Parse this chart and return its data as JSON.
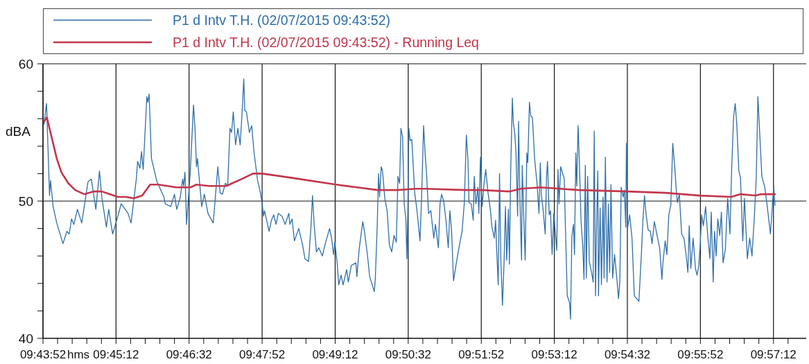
{
  "chart_data": {
    "type": "line",
    "ylabel": "dBA",
    "xlabel": "hms",
    "xlim": [
      9.7311111,
      9.9633
    ],
    "ylim": [
      40,
      60
    ],
    "xticks": [
      {
        "value": 9.7311111,
        "label": "09:43:52"
      },
      {
        "value": 9.7355556,
        "label": null
      },
      {
        "value": 9.74,
        "label": null
      },
      {
        "value": 9.7444444,
        "label": null
      },
      {
        "value": 9.7488889,
        "label": null
      },
      {
        "value": 9.7533333,
        "label": "09:45:12"
      },
      {
        "value": 9.7577778,
        "label": null
      },
      {
        "value": 9.7622222,
        "label": null
      },
      {
        "value": 9.7666667,
        "label": null
      },
      {
        "value": 9.7711111,
        "label": null
      },
      {
        "value": 9.7755556,
        "label": "09:46:32"
      },
      {
        "value": 9.78,
        "label": null
      },
      {
        "value": 9.7844444,
        "label": null
      },
      {
        "value": 9.7888889,
        "label": null
      },
      {
        "value": 9.7933333,
        "label": null
      },
      {
        "value": 9.7977778,
        "label": "09:47:52"
      },
      {
        "value": 9.8022222,
        "label": null
      },
      {
        "value": 9.8066667,
        "label": null
      },
      {
        "value": 9.8111111,
        "label": null
      },
      {
        "value": 9.8155556,
        "label": null
      },
      {
        "value": 9.82,
        "label": "09:49:12"
      },
      {
        "value": 9.8244444,
        "label": null
      },
      {
        "value": 9.8288889,
        "label": null
      },
      {
        "value": 9.8333333,
        "label": null
      },
      {
        "value": 9.8377778,
        "label": null
      },
      {
        "value": 9.8422222,
        "label": "09:50:32"
      },
      {
        "value": 9.8466667,
        "label": null
      },
      {
        "value": 9.8511111,
        "label": null
      },
      {
        "value": 9.8555556,
        "label": null
      },
      {
        "value": 9.86,
        "label": null
      },
      {
        "value": 9.8644444,
        "label": "09:51:52"
      },
      {
        "value": 9.8688889,
        "label": null
      },
      {
        "value": 9.8733333,
        "label": null
      },
      {
        "value": 9.8777778,
        "label": null
      },
      {
        "value": 9.8822222,
        "label": null
      },
      {
        "value": 9.8866667,
        "label": "09:53:12"
      },
      {
        "value": 9.8911111,
        "label": null
      },
      {
        "value": 9.8955556,
        "label": null
      },
      {
        "value": 9.9,
        "label": null
      },
      {
        "value": 9.9044444,
        "label": null
      },
      {
        "value": 9.9088889,
        "label": "09:54:32"
      },
      {
        "value": 9.9133333,
        "label": null
      },
      {
        "value": 9.9177778,
        "label": null
      },
      {
        "value": 9.9222222,
        "label": null
      },
      {
        "value": 9.9266667,
        "label": null
      },
      {
        "value": 9.9311111,
        "label": "09:55:52"
      },
      {
        "value": 9.9355556,
        "label": null
      },
      {
        "value": 9.94,
        "label": null
      },
      {
        "value": 9.9444444,
        "label": null
      },
      {
        "value": 9.9488889,
        "label": null
      },
      {
        "value": 9.9533333,
        "label": "09:57:12"
      },
      {
        "value": 9.9577778,
        "label": null
      }
    ],
    "yticks": [
      40,
      {
        "value": 42,
        "label": null
      },
      {
        "value": 44,
        "label": null
      },
      {
        "value": 46,
        "label": null
      },
      {
        "value": 48,
        "label": null
      },
      50,
      {
        "value": 52,
        "label": null
      },
      {
        "value": 54,
        "label": null
      },
      {
        "value": 56,
        "label": null
      },
      {
        "value": 58,
        "label": null
      },
      60
    ],
    "grid": true,
    "legend": "top",
    "series": [
      {
        "name": "P1 d Intv T.H. (02/07/2015 09:43:52)",
        "color": "#2f6ea8",
        "x": [
          9.7314,
          9.7322,
          9.7331,
          9.7334,
          9.7342,
          9.7353,
          9.7372,
          9.7384,
          9.7391,
          9.7398,
          9.7405,
          9.7416,
          9.7429,
          9.7448,
          9.7458,
          9.7472,
          9.7483,
          9.749,
          9.7504,
          9.7511,
          9.7523,
          9.7539,
          9.7549,
          9.757,
          9.7579,
          9.7595,
          9.7599,
          9.7606,
          9.7611,
          9.7616,
          9.7627,
          9.763,
          9.7634,
          9.7641,
          9.7658,
          9.7679,
          9.7683,
          9.77,
          9.7711,
          9.7718,
          9.7729,
          9.7736,
          9.7739,
          9.7743,
          9.7748,
          9.7753,
          9.7759,
          9.7769,
          9.7774,
          9.7778,
          9.7781,
          9.7787,
          9.7794,
          9.7802,
          9.7813,
          9.7829,
          9.7843,
          9.785,
          9.7857,
          9.7866,
          9.7873,
          9.788,
          9.7885,
          9.789,
          9.7897,
          9.7904,
          9.7911,
          9.7916,
          9.7922,
          9.7925,
          9.793,
          9.7939,
          9.7946,
          9.7953,
          9.7964,
          9.7971,
          9.7978,
          9.7982,
          9.7985,
          9.7999,
          9.8006,
          9.8013,
          9.802,
          9.8027,
          9.8038,
          9.8048,
          9.8059,
          9.8062,
          9.8069,
          9.8076,
          9.8089,
          9.8101,
          9.8108,
          9.8119,
          9.8126,
          9.8131,
          9.8136,
          9.8143,
          9.815,
          9.8161,
          9.8171,
          9.8183,
          9.8189,
          9.8195,
          9.8199,
          9.8206,
          9.8211,
          9.8218,
          9.8224,
          9.8235,
          9.824,
          9.8249,
          9.8263,
          9.8266,
          9.8273,
          9.8284,
          9.8289,
          9.8298,
          9.8305,
          9.8319,
          9.8322,
          9.8328,
          9.8332,
          9.8335,
          9.834,
          9.8344,
          9.8351,
          9.8358,
          9.8365,
          9.8372,
          9.8379,
          9.8386,
          9.8391,
          9.8396,
          9.84,
          9.8405,
          9.841,
          9.8415,
          9.8418,
          9.8421,
          9.8424,
          9.8428,
          9.8433,
          9.8442,
          9.8449,
          9.8458,
          9.8463,
          9.8469,
          9.8474,
          9.8478,
          9.8484,
          9.8491,
          9.85,
          9.8505,
          9.8514,
          9.8519,
          9.8524,
          9.853,
          9.8537,
          9.8544,
          9.8549,
          9.8554,
          9.856,
          9.8568,
          9.8575,
          9.8586,
          9.8593,
          9.8599,
          9.8604,
          9.8607,
          9.8614,
          9.862,
          9.8623,
          9.8628,
          9.8634,
          9.8637,
          9.8642,
          9.8647,
          9.8653,
          9.8658,
          9.8665,
          9.8672,
          9.8677,
          9.8684,
          9.8688,
          9.8691,
          9.8696,
          9.87,
          9.8704,
          9.8709,
          9.8714,
          9.8718,
          9.8722,
          9.8727,
          9.873,
          9.8734,
          9.8739,
          9.8742,
          9.8746,
          9.875,
          9.8755,
          9.8758,
          9.8762,
          9.8767,
          9.8769,
          9.8774,
          9.8778,
          9.8783,
          9.8786,
          9.8791,
          9.8795,
          9.88,
          9.8807,
          9.8814,
          9.882,
          9.8824,
          9.8827,
          9.8832,
          9.8839,
          9.8843,
          9.8846,
          9.8851,
          9.8855,
          9.886,
          9.8865,
          9.8874,
          9.8878,
          9.8881,
          9.8886,
          9.8897,
          9.89,
          9.8906,
          9.8913,
          9.8916,
          9.892,
          9.8925,
          9.8928,
          9.8932,
          9.8935,
          9.8939,
          9.8943,
          9.8948,
          9.8953,
          9.8957,
          9.8961,
          9.8964,
          9.8968,
          9.8973,
          9.898,
          9.8985,
          9.8988,
          9.8992,
          9.8995,
          9.8999,
          9.9001,
          9.9006,
          9.901,
          9.9015,
          9.9018,
          9.9022,
          9.9027,
          9.9031,
          9.9035,
          9.9039,
          9.9044,
          9.905,
          9.9057,
          9.9062,
          9.9066,
          9.907,
          9.9076,
          9.908,
          9.9084,
          9.9086,
          9.909,
          9.9096,
          9.9103,
          9.911,
          9.9124,
          9.9131,
          9.9136,
          9.9141,
          9.9146,
          9.9152,
          9.9159,
          9.9164,
          9.9171,
          9.918,
          9.9187,
          9.9194,
          9.9197,
          9.9204,
          9.9209,
          9.9215,
          9.9221,
          9.9227,
          9.9233,
          9.9237,
          9.9241,
          9.9247,
          9.9254,
          9.9261,
          9.9268,
          9.9273,
          9.9277,
          9.9282,
          9.9289,
          9.9296,
          9.9301,
          9.9306,
          9.931,
          9.9315,
          9.932,
          9.9327,
          9.9333,
          9.934,
          9.9344,
          9.935,
          9.9354,
          9.9359,
          9.9364,
          9.937,
          9.9375,
          9.938,
          9.9387,
          9.9394,
          9.9401,
          9.9406,
          9.9412,
          9.9417,
          9.9422,
          9.9428,
          9.9433,
          9.944,
          9.9445,
          9.9454,
          9.9461,
          9.9468,
          9.9475,
          9.9481,
          9.9486,
          9.9492,
          9.9498,
          9.9507,
          9.9514,
          9.9524,
          9.953,
          9.9534,
          9.9538
        ],
        "values": [
          55.6,
          57.1,
          50.4,
          51.5,
          49.6,
          48.4,
          46.9,
          47.8,
          47.6,
          48.7,
          48.3,
          49.4,
          48.4,
          51.4,
          51.6,
          49.4,
          52.2,
          50.3,
          48.1,
          49.4,
          47.6,
          48.9,
          49.8,
          49.1,
          48.4,
          51.6,
          52.9,
          52.4,
          53.6,
          52.3,
          57.6,
          57.2,
          57.8,
          53.1,
          51.4,
          50.3,
          49.8,
          49.6,
          50.5,
          49.4,
          50.3,
          51.6,
          51.1,
          52.1,
          48.3,
          50.1,
          52.0,
          57.0,
          55.1,
          52.5,
          53.1,
          51.5,
          49.6,
          50.5,
          49.1,
          48.4,
          52.5,
          50.6,
          50.5,
          51.3,
          51.1,
          55.3,
          55.0,
          56.5,
          54.1,
          55.3,
          54.1,
          56.1,
          58.9,
          56.6,
          56.5,
          55.0,
          55.5,
          53.6,
          51.5,
          50.8,
          49.8,
          48.9,
          49.3,
          47.8,
          48.6,
          49.0,
          48.3,
          49.1,
          48.9,
          48.3,
          49.1,
          48.3,
          48.7,
          47.1,
          48.0,
          46.8,
          45.8,
          45.6,
          48.0,
          50.4,
          48.3,
          46.3,
          46.6,
          46.0,
          47.0,
          48.0,
          47.3,
          46.1,
          47.0,
          45.5,
          43.9,
          44.6,
          43.9,
          45.0,
          44.1,
          45.3,
          45.5,
          44.5,
          46.5,
          48.5,
          47.8,
          46.1,
          44.5,
          43.4,
          44.3,
          48.3,
          52.0,
          50.3,
          52.5,
          52.2,
          50.2,
          49.3,
          46.8,
          46.3,
          47.5,
          47.0,
          51.8,
          51.3,
          55.3,
          54.7,
          49.8,
          48.7,
          45.8,
          49.3,
          55.3,
          54.4,
          54.5,
          50.6,
          49.3,
          47.1,
          50.3,
          55.5,
          53.3,
          52.0,
          49.1,
          49.3,
          47.3,
          48.3,
          46.6,
          49.8,
          50.5,
          50.0,
          48.6,
          46.6,
          49.3,
          47.9,
          44.2,
          45.4,
          46.4,
          47.8,
          49.9,
          54.8,
          53.0,
          49.9,
          49.8,
          48.6,
          51.8,
          49.8,
          51.0,
          49.1,
          53.2,
          49.6,
          51.3,
          52.3,
          50.6,
          49.4,
          48.1,
          47.3,
          48.6,
          46.6,
          43.9,
          52.0,
          45.7,
          42.4,
          45.7,
          49.6,
          45.7,
          49.4,
          45.4,
          52.3,
          57.5,
          55.7,
          55.0,
          53.6,
          48.9,
          55.8,
          50.1,
          45.7,
          52.6,
          48.6,
          45.7,
          53.5,
          52.8,
          57.2,
          56.2,
          56.1,
          53.0,
          51.3,
          49.1,
          52.8,
          50.5,
          49.5,
          47.6,
          51.8,
          52.9,
          49.0,
          49.3,
          46.1,
          49.1,
          46.4,
          52.3,
          49.8,
          52.5,
          51.6,
          48.5,
          43.1,
          42.6,
          41.4,
          47.4,
          48.3,
          46.1,
          53.5,
          51.1,
          55.5,
          52.8,
          48.5,
          46.8,
          44.3,
          52.6,
          44.4,
          51.8,
          45.6,
          44.8,
          44.1,
          55.1,
          43.1,
          48.1,
          52.2,
          43.1,
          49.5,
          43.9,
          50.3,
          44.4,
          53.2,
          44.1,
          49.8,
          44.8,
          51.2,
          44.4,
          46.1,
          44.3,
          42.9,
          44.1,
          51.0,
          50.3,
          50.8,
          48.1,
          54.2,
          48.1,
          49.0,
          47.3,
          43.1,
          42.7,
          45.9,
          48.5,
          50.4,
          49.0,
          47.9,
          47.8,
          46.9,
          48.5,
          47.4,
          46.6,
          44.3,
          45.5,
          47.1,
          46.1,
          49.0,
          49.7,
          54.2,
          52.5,
          51.0,
          49.9,
          50.5,
          47.6,
          47.3,
          46.0,
          44.8,
          48.2,
          45.1,
          47.3,
          45.1,
          44.6,
          45.3,
          46.6,
          49.0,
          48.2,
          49.6,
          47.6,
          45.8,
          49.2,
          44.1,
          47.8,
          46.0,
          48.7,
          47.5,
          49.2,
          45.5,
          46.5,
          50.2,
          47.6,
          52.2,
          56.1,
          57.1,
          55.5,
          52.2,
          51.7,
          47.1,
          50.2,
          45.8,
          47.3,
          46.0,
          48.8,
          51.7,
          57.6,
          54.7,
          51.8,
          51.0,
          49.7,
          47.6,
          49.7,
          51.1,
          49.7
        ]
      },
      {
        "name": "P1 d Intv T.H. (02/07/2015 09:43:52) - Running Leq",
        "color": "#c2364b",
        "x": [
          9.7312,
          9.7323,
          9.7339,
          9.7353,
          9.7367,
          9.7388,
          9.7409,
          9.7437,
          9.7465,
          9.749,
          9.7514,
          9.7539,
          9.7563,
          9.7588,
          9.7613,
          9.7637,
          9.7662,
          9.7718,
          9.776,
          9.7778,
          9.7816,
          9.7869,
          9.7887,
          9.7915,
          9.795,
          9.7978,
          9.8066,
          9.8203,
          9.8329,
          9.8389,
          9.8445,
          9.8477,
          9.8597,
          9.8646,
          9.873,
          9.8765,
          9.8825,
          9.8941,
          9.9088,
          9.9205,
          9.931,
          9.9405,
          9.9433,
          9.9479,
          9.9496,
          9.9538
        ],
        "values": [
          55.7,
          56.1,
          54.5,
          53.1,
          52.1,
          51.3,
          50.8,
          50.5,
          50.7,
          50.7,
          50.5,
          50.3,
          50.3,
          50.2,
          50.4,
          51.2,
          51.2,
          51.0,
          51.0,
          51.2,
          51.1,
          51.1,
          51.3,
          51.6,
          52.0,
          52.0,
          51.7,
          51.2,
          50.8,
          50.8,
          50.9,
          50.9,
          50.8,
          50.8,
          50.7,
          50.9,
          51.0,
          50.8,
          50.7,
          50.6,
          50.4,
          50.3,
          50.5,
          50.4,
          50.5,
          50.5
        ]
      }
    ]
  }
}
